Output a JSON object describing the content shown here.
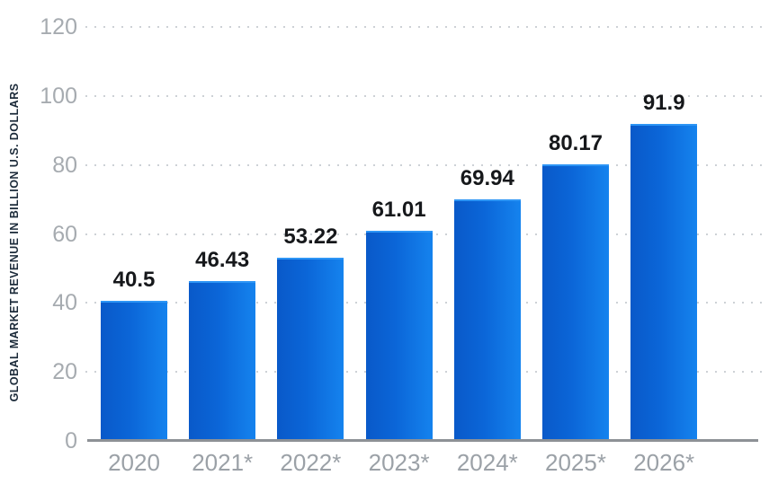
{
  "chart_data": {
    "type": "bar",
    "title": "",
    "categories": [
      "2020",
      "2021*",
      "2022*",
      "2023*",
      "2024*",
      "2025*",
      "2026*"
    ],
    "values": [
      40.5,
      46.43,
      53.22,
      61.01,
      69.94,
      80.17,
      91.9
    ],
    "value_labels": [
      "40.5",
      "46.43",
      "53.22",
      "61.01",
      "69.94",
      "80.17",
      "91.9"
    ],
    "xlabel": "",
    "ylabel": "GLOBAL MARKET REVENUE IN BILLION U.S. DOLLARS",
    "ylim": [
      0,
      120
    ],
    "yticks": [
      0,
      20,
      40,
      60,
      80,
      100,
      120
    ],
    "grid": "horizontal-dotted",
    "legend": "none",
    "colors": {
      "bar_gradient_left": "#0959c9",
      "bar_gradient_mid": "#0b66d8",
      "bar_gradient_right": "#1583ee",
      "bar_top_highlight": "#2d95f5",
      "value_label": "#16181b",
      "tick_label": "#a6abb0",
      "x_tick_label": "#9ba1a7",
      "gridline": "#cdd1d6",
      "axis_line": "#8d9196",
      "y_axis_title": "#1c2b3a",
      "background": "#ffffff"
    }
  }
}
